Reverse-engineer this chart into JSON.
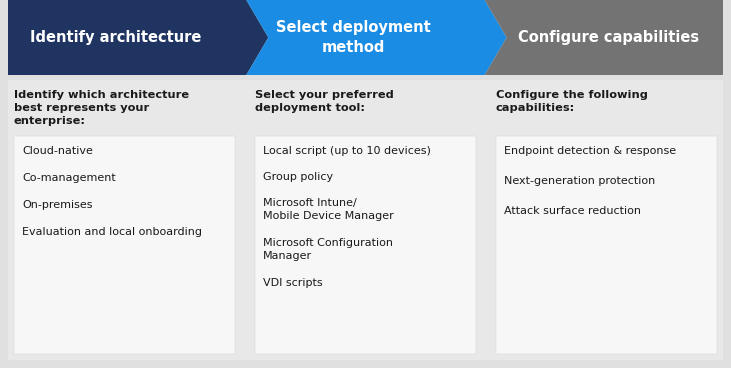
{
  "col1_header": "Identify architecture",
  "col2_header": "Select deployment\nmethod",
  "col3_header": "Configure capabilities",
  "col1_color": "#1f3461",
  "col2_color": "#1b8ce3",
  "col3_color": "#737373",
  "header_text_color": "#ffffff",
  "body_bg_color": "#e8e8e8",
  "inner_box_color": "#f7f7f7",
  "body_text_color": "#1a1a1a",
  "col1_subtitle": "Identify which architecture\nbest represents your\nenterprise:",
  "col2_subtitle": "Select your preferred\ndeployment tool:",
  "col3_subtitle": "Configure the following\ncapabilities:",
  "col1_items": [
    "Cloud-native",
    "Co-management",
    "On-premises",
    "Evaluation and local onboarding"
  ],
  "col2_items": [
    "Local script (up to 10 devices)",
    "Group policy",
    "Microsoft Intune/\nMobile Device Manager",
    "Microsoft Configuration\nManager",
    "VDI scripts"
  ],
  "col3_items": [
    "Endpoint detection & response",
    "Next-generation protection",
    "Attack surface reduction"
  ],
  "outer_bg": "#e0e0e0",
  "fig_bg": "#e0e0e0"
}
